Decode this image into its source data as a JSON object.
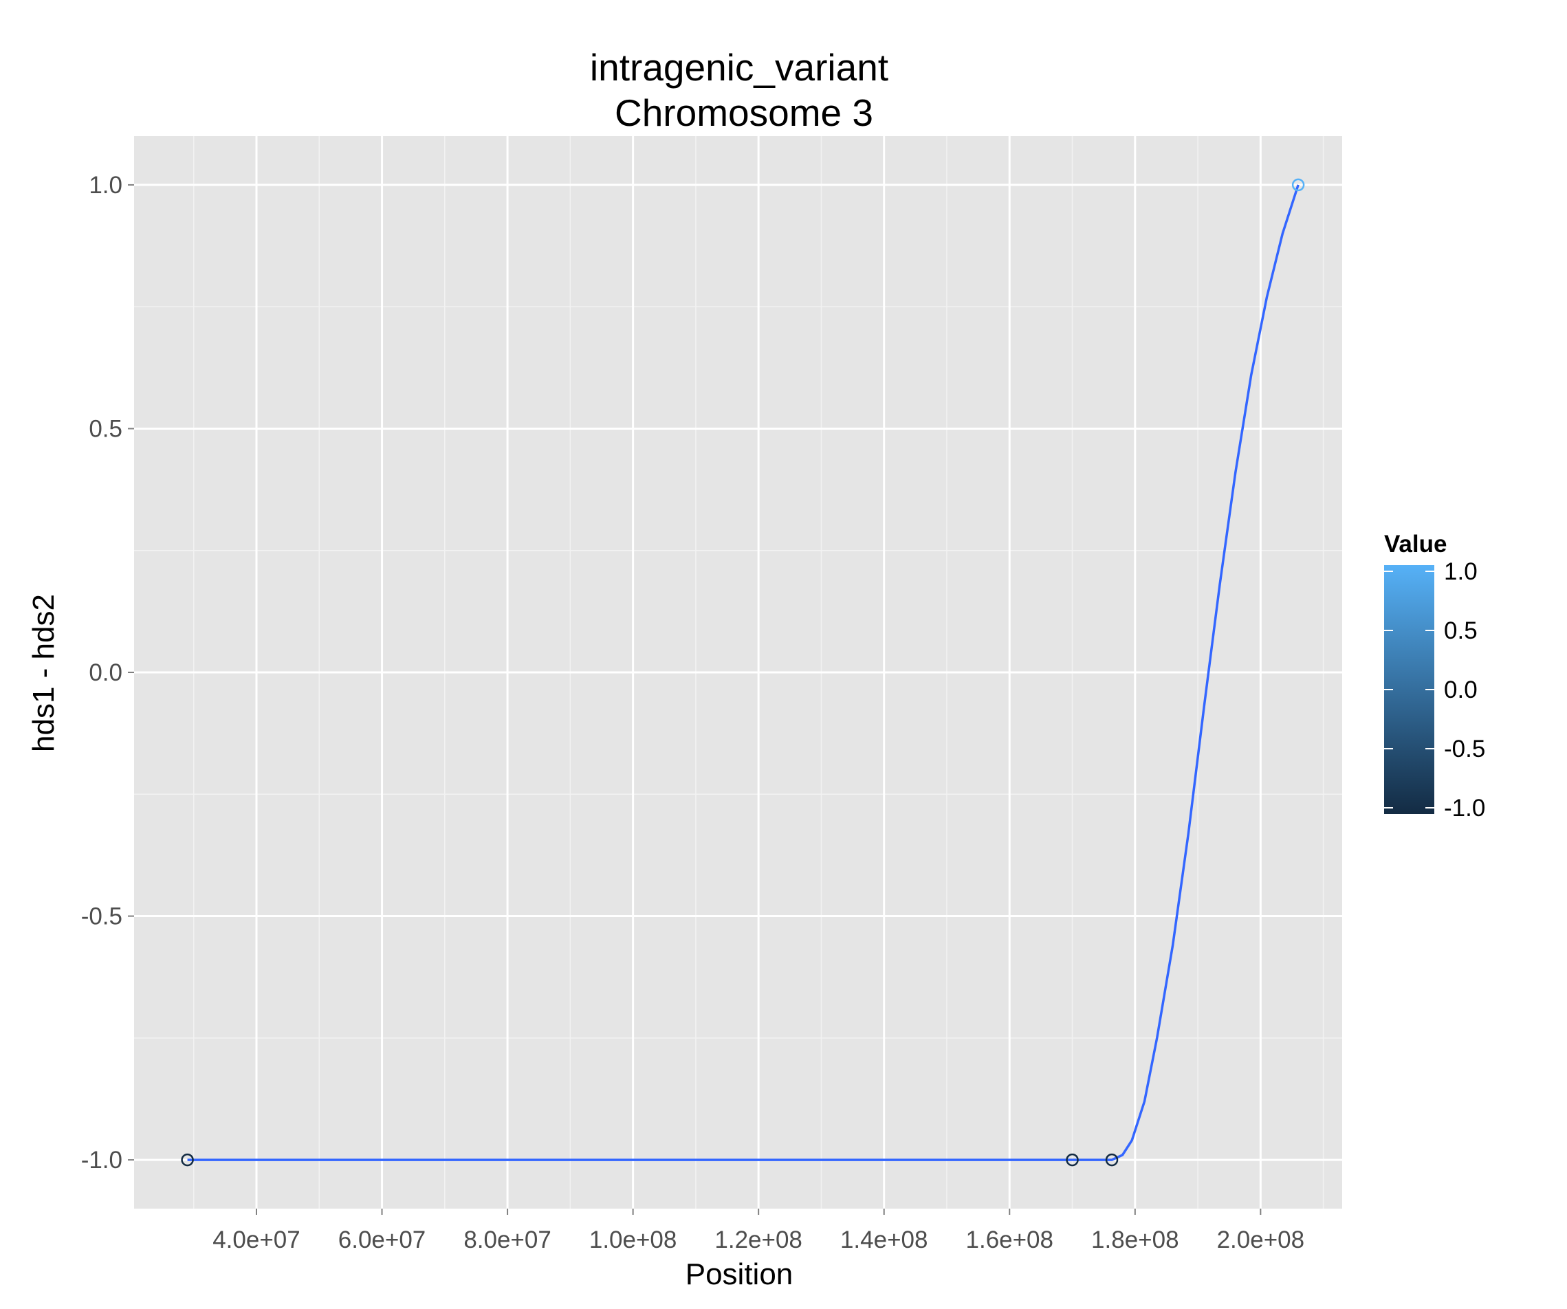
{
  "chart_data": {
    "type": "scatter",
    "title_line1": "intragenic_variant",
    "title_line2": "Chromosome 3",
    "xlabel": "Position",
    "ylabel": "hds1 - hds2",
    "xlim": [
      20500000,
      213000000
    ],
    "ylim": [
      -1.1,
      1.1
    ],
    "x_major_ticks": [
      40000000,
      60000000,
      80000000,
      100000000,
      120000000,
      140000000,
      160000000,
      180000000,
      200000000
    ],
    "x_tick_labels": [
      "4.0e+07",
      "6.0e+07",
      "8.0e+07",
      "1.0e+08",
      "1.2e+08",
      "1.4e+08",
      "1.6e+08",
      "1.8e+08",
      "2.0e+08"
    ],
    "y_major_ticks": [
      -1.0,
      -0.5,
      0.0,
      0.5,
      1.0
    ],
    "y_tick_labels": [
      "-1.0",
      "-0.5",
      "0.0",
      "0.5",
      "1.0"
    ],
    "grid": true,
    "background": "#e5e5e5",
    "points": [
      {
        "x": 29000000,
        "y": -1.0,
        "value": -1.0
      },
      {
        "x": 170000000,
        "y": -1.0,
        "value": -1.0
      },
      {
        "x": 176300000,
        "y": -1.0,
        "value": -1.0
      },
      {
        "x": 206000000,
        "y": 1.0,
        "value": 1.0
      }
    ],
    "smooth_line": {
      "color": "#3366ff",
      "x": [
        29000000,
        170000000,
        176300000,
        178000000,
        179500000,
        181500000,
        183500000,
        186000000,
        188500000,
        191000000,
        193500000,
        196000000,
        198500000,
        201000000,
        203500000,
        206000000
      ],
      "y": [
        -1.0,
        -1.0,
        -1.0,
        -0.99,
        -0.96,
        -0.88,
        -0.75,
        -0.56,
        -0.33,
        -0.07,
        0.18,
        0.41,
        0.61,
        0.77,
        0.9,
        1.0
      ]
    },
    "legend": {
      "title": "Value",
      "position": "right",
      "ticks": [
        1.0,
        0.5,
        0.0,
        -0.5,
        -1.0
      ],
      "tick_labels": [
        "1.0",
        "0.5",
        "0.0",
        "-0.5",
        "-1.0"
      ],
      "color_low": "#132b43",
      "color_high": "#56b1f7"
    }
  }
}
